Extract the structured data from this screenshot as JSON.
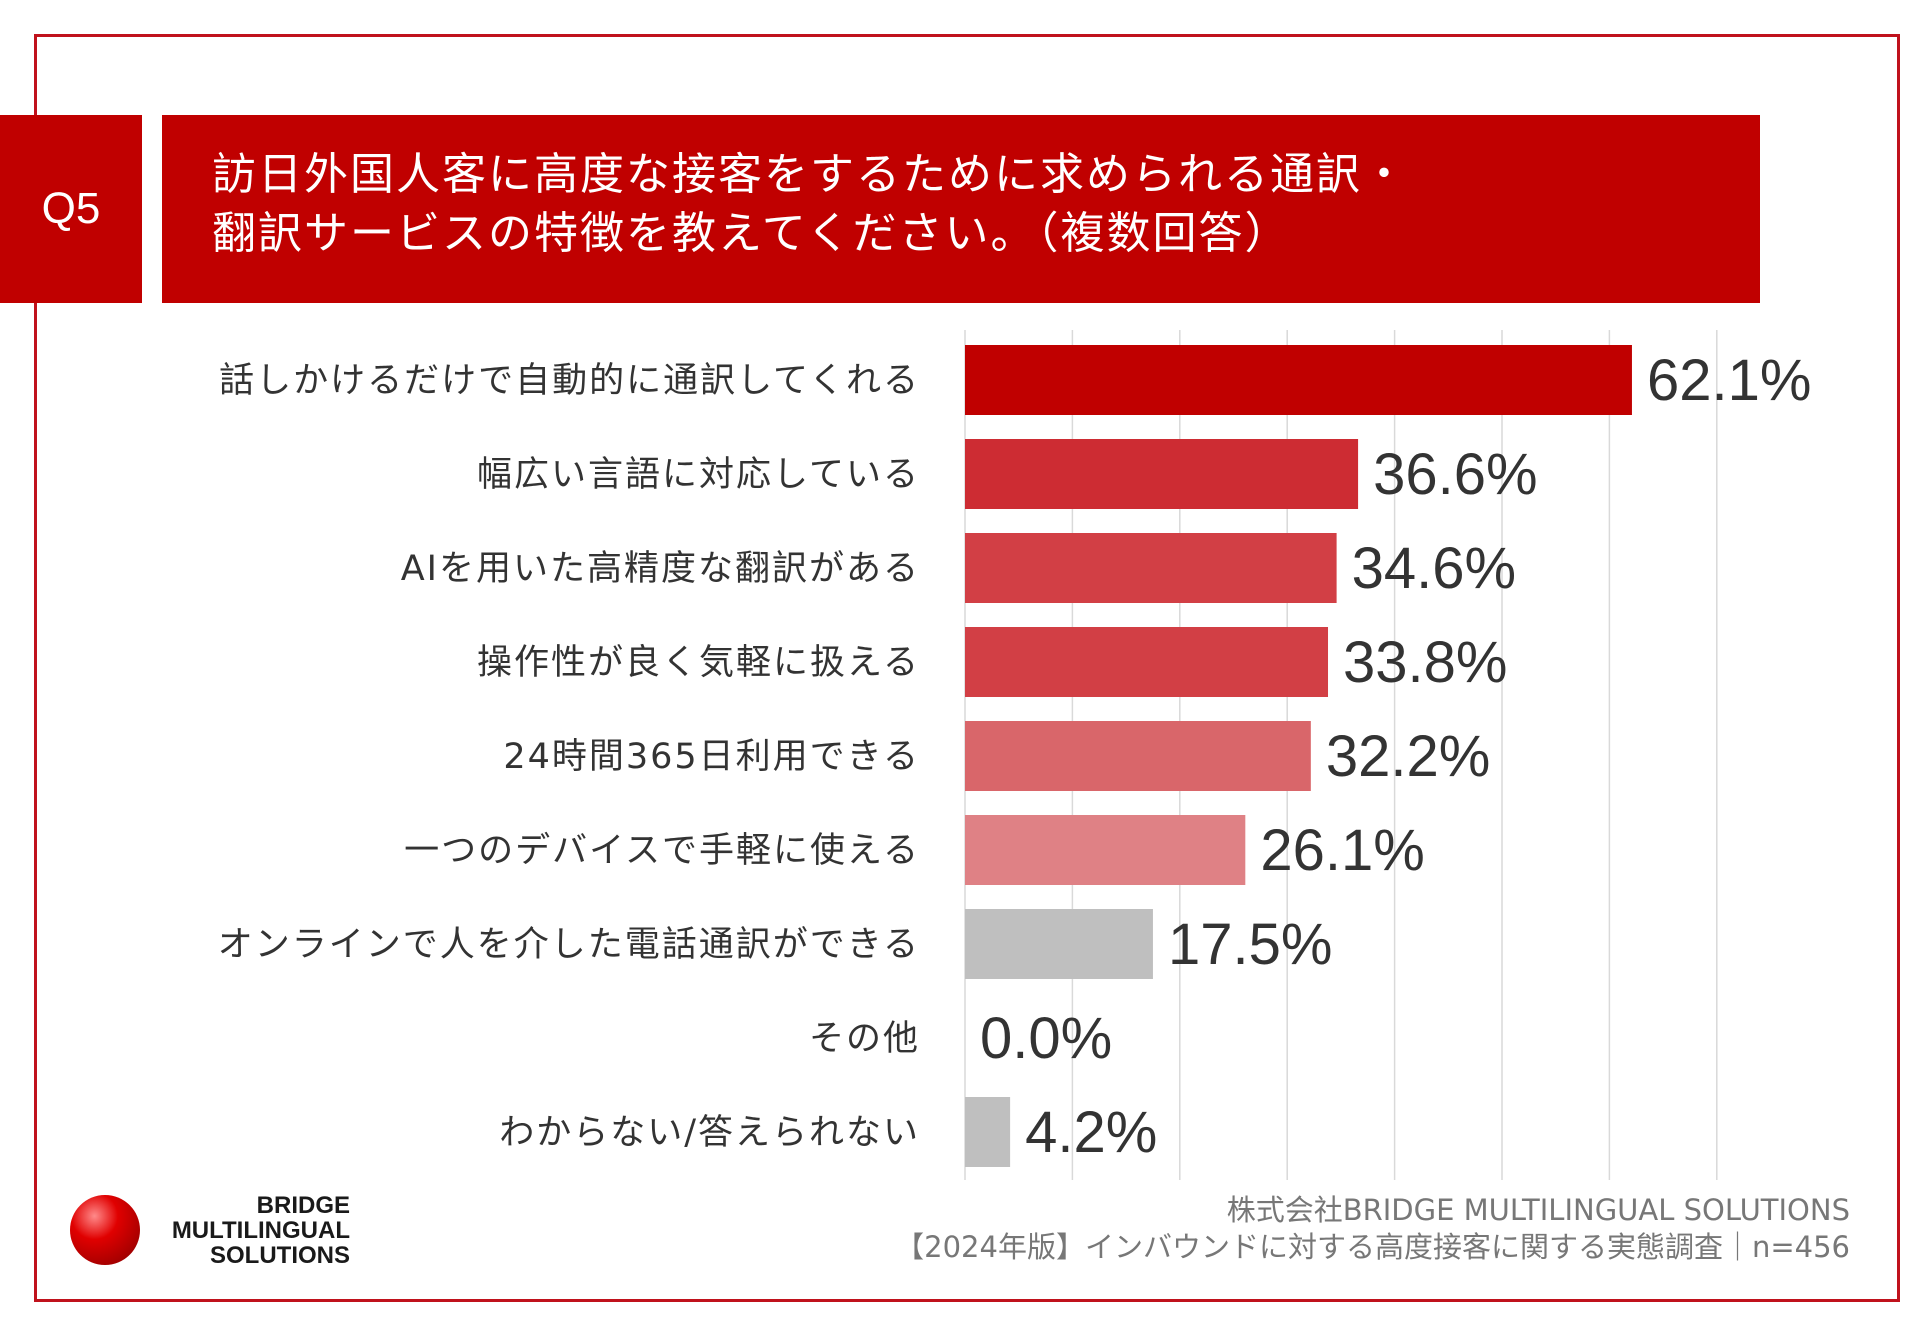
{
  "question": {
    "badge": "Q5",
    "title_line1": "訪日外国人客に高度な接客をするために求められる通訳・",
    "title_line2": "翻訳サービスの特徴を教えてください。（複数回答）"
  },
  "chart_data": {
    "type": "bar",
    "orientation": "horizontal",
    "categories": [
      "話しかけるだけで自動的に通訳してくれる",
      "幅広い言語に対応している",
      "AIを用いた高精度な翻訳がある",
      "操作性が良く気軽に扱える",
      "24時間365日利用できる",
      "一つのデバイスで手軽に使える",
      "オンラインで人を介した電話通訳ができる",
      "その他",
      "わからない/答えられない"
    ],
    "values": [
      62.1,
      36.6,
      34.6,
      33.8,
      32.2,
      26.1,
      17.5,
      0.0,
      4.2
    ],
    "value_labels": [
      "62.1%",
      "36.6%",
      "34.6%",
      "33.8%",
      "32.2%",
      "26.1%",
      "17.5%",
      "0.0%",
      "4.2%"
    ],
    "unit": "%",
    "xlim": [
      0,
      70
    ],
    "grid": true,
    "bar_colors": [
      "#c00000",
      "#cd2c33",
      "#d23f45",
      "#d23f45",
      "#d9666a",
      "#df8185",
      "#bfbfbf",
      "#bfbfbf",
      "#bfbfbf"
    ]
  },
  "footer": {
    "logo_line1": "BRIDGE",
    "logo_line2": "MULTILINGUAL",
    "logo_line3": "SOLUTIONS",
    "source_line1": "株式会社BRIDGE MULTILINGUAL SOLUTIONS",
    "source_line2": "【2024年版】インバウンドに対する高度接客に関する実態調査｜n=456"
  }
}
